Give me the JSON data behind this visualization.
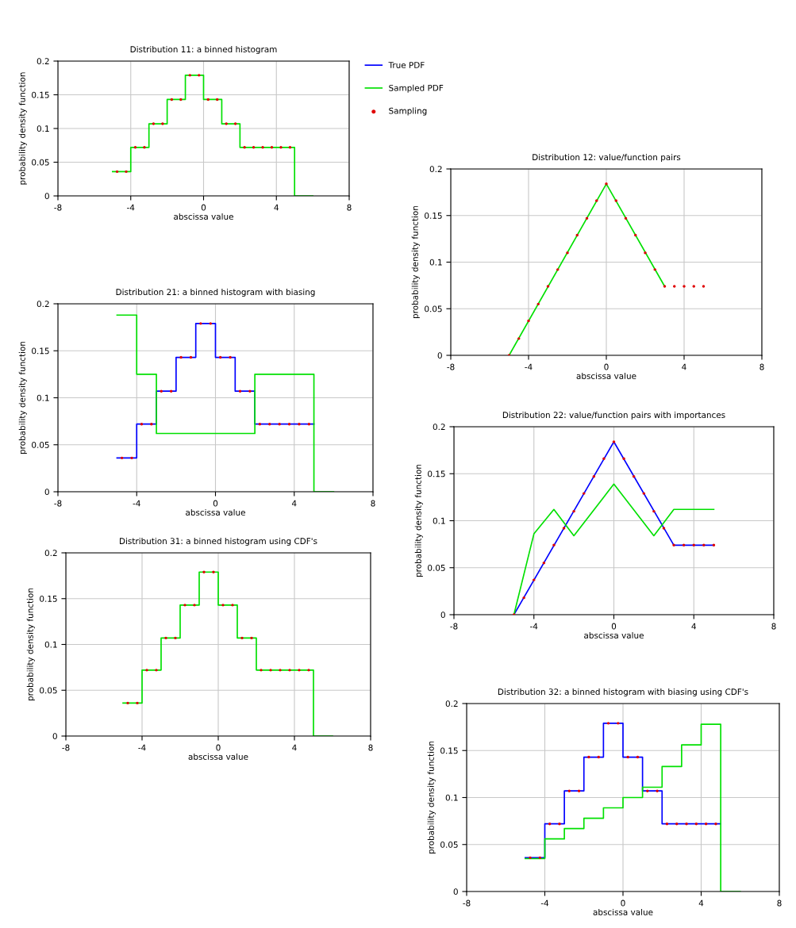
{
  "chart_data": [
    {
      "type": "step",
      "title": "Distribution 11: a binned histogram",
      "xlabel": "abscissa value",
      "ylabel": "probability density function",
      "xlim": [
        -8,
        8
      ],
      "ylim": [
        0,
        0.2
      ],
      "xticks": [
        -8,
        -4,
        0,
        4,
        8
      ],
      "yticks": [
        0,
        0.05,
        0.1,
        0.15,
        0.2
      ],
      "grid": true,
      "legend": "right",
      "series": [
        {
          "name": "True PDF",
          "color": "#0000ff"
        },
        {
          "name": "Sampled PDF",
          "color": "#00e000",
          "x": [
            -5,
            -4,
            -3,
            -2,
            -1,
            0,
            1,
            2,
            5,
            6
          ],
          "values": [
            0.036,
            0.072,
            0.107,
            0.143,
            0.179,
            0.143,
            0.107,
            0.072,
            0,
            0
          ]
        },
        {
          "name": "Sampling",
          "type": "scatter",
          "color": "#e00000",
          "x": [
            -4.75,
            -4.25,
            -3.75,
            -3.25,
            -2.75,
            -2.25,
            -1.75,
            -1.25,
            -0.75,
            -0.25,
            0.25,
            0.75,
            1.25,
            1.75,
            2.25,
            2.75,
            3.25,
            3.75,
            4.25,
            4.75
          ],
          "values": [
            0.036,
            0.036,
            0.072,
            0.072,
            0.107,
            0.107,
            0.143,
            0.143,
            0.179,
            0.179,
            0.143,
            0.143,
            0.107,
            0.107,
            0.072,
            0.072,
            0.072,
            0.072,
            0.072,
            0.072
          ]
        }
      ]
    },
    {
      "type": "line",
      "title": "Distribution 12: value/function pairs",
      "xlabel": "abscissa value",
      "ylabel": "probability density function",
      "xlim": [
        -8,
        8
      ],
      "ylim": [
        0,
        0.2
      ],
      "xticks": [
        -8,
        -4,
        0,
        4,
        8
      ],
      "yticks": [
        0,
        0.05,
        0.1,
        0.15,
        0.2
      ],
      "grid": true,
      "series": [
        {
          "color": "#00e000",
          "x": [
            -5,
            0,
            3
          ],
          "values": [
            0,
            0.184,
            0.074
          ]
        },
        {
          "type": "scatter",
          "color": "#e00000",
          "x": [
            -5,
            -4.5,
            -4,
            -3.5,
            -3,
            -2.5,
            -2,
            -1.5,
            -1,
            -0.5,
            0,
            0.5,
            1,
            1.5,
            2,
            2.5,
            3,
            3.5,
            4,
            4.5,
            5
          ],
          "values": [
            0,
            0.018,
            0.037,
            0.055,
            0.074,
            0.092,
            0.11,
            0.129,
            0.147,
            0.166,
            0.184,
            0.166,
            0.147,
            0.129,
            0.11,
            0.092,
            0.074,
            0.074,
            0.074,
            0.074,
            0.074
          ]
        }
      ]
    },
    {
      "type": "step",
      "title": "Distribution 21: a binned histogram with biasing",
      "xlabel": "abscissa value",
      "ylabel": "probability density function",
      "xlim": [
        -8,
        8
      ],
      "ylim": [
        0,
        0.2
      ],
      "xticks": [
        -8,
        -4,
        0,
        4,
        8
      ],
      "yticks": [
        0,
        0.05,
        0.1,
        0.15,
        0.2
      ],
      "grid": true,
      "series": [
        {
          "color": "#0000ff",
          "x": [
            -5,
            -4,
            -3,
            -2,
            -1,
            0,
            1,
            2,
            5
          ],
          "values": [
            0.036,
            0.072,
            0.107,
            0.143,
            0.179,
            0.143,
            0.107,
            0.072,
            0.072
          ]
        },
        {
          "color": "#00e000",
          "x": [
            -5,
            -4,
            -3,
            2,
            5,
            6
          ],
          "values": [
            0.188,
            0.125,
            0.062,
            0.125,
            0,
            0
          ]
        },
        {
          "type": "scatter",
          "color": "#e00000",
          "x": [
            -4.75,
            -4.25,
            -3.75,
            -3.25,
            -2.75,
            -2.25,
            -1.75,
            -1.25,
            -0.75,
            -0.25,
            0.25,
            0.75,
            1.25,
            1.75,
            2.25,
            2.75,
            3.25,
            3.75,
            4.25,
            4.75
          ],
          "values": [
            0.036,
            0.036,
            0.072,
            0.072,
            0.107,
            0.107,
            0.143,
            0.143,
            0.179,
            0.179,
            0.143,
            0.143,
            0.107,
            0.107,
            0.072,
            0.072,
            0.072,
            0.072,
            0.072,
            0.072
          ]
        }
      ]
    },
    {
      "type": "line",
      "title": "Distribution 22: value/function pairs with importances",
      "xlabel": "abscissa value",
      "ylabel": "probability density function",
      "xlim": [
        -8,
        8
      ],
      "ylim": [
        0,
        0.2
      ],
      "xticks": [
        -8,
        -4,
        0,
        4,
        8
      ],
      "yticks": [
        0,
        0.05,
        0.1,
        0.15,
        0.2
      ],
      "grid": true,
      "series": [
        {
          "color": "#0000ff",
          "x": [
            -5,
            0,
            3,
            5
          ],
          "values": [
            0,
            0.184,
            0.074,
            0.074
          ]
        },
        {
          "color": "#00e000",
          "x": [
            -5,
            -4,
            -3,
            -2,
            0,
            2,
            3,
            5
          ],
          "values": [
            0,
            0.086,
            0.112,
            0.084,
            0.139,
            0.084,
            0.112,
            0.112
          ]
        },
        {
          "type": "scatter",
          "color": "#e00000",
          "x": [
            -5,
            -4.5,
            -4,
            -3.5,
            -3,
            -2.5,
            -2,
            -1.5,
            -1,
            -0.5,
            0,
            0.5,
            1,
            1.5,
            2,
            2.5,
            3,
            3.5,
            4,
            4.5,
            5
          ],
          "values": [
            0,
            0.018,
            0.037,
            0.055,
            0.074,
            0.092,
            0.11,
            0.129,
            0.147,
            0.166,
            0.184,
            0.166,
            0.147,
            0.129,
            0.11,
            0.092,
            0.074,
            0.074,
            0.074,
            0.074,
            0.074
          ]
        }
      ]
    },
    {
      "type": "step",
      "title": "Distribution 31: a binned histogram using CDF's",
      "xlabel": "abscissa value",
      "ylabel": "probability density function",
      "xlim": [
        -8,
        8
      ],
      "ylim": [
        0,
        0.2
      ],
      "xticks": [
        -8,
        -4,
        0,
        4,
        8
      ],
      "yticks": [
        0,
        0.05,
        0.1,
        0.15,
        0.2
      ],
      "grid": true,
      "series": [
        {
          "color": "#00e000",
          "x": [
            -5,
            -4,
            -3,
            -2,
            -1,
            0,
            1,
            2,
            5,
            6
          ],
          "values": [
            0.036,
            0.072,
            0.107,
            0.143,
            0.179,
            0.143,
            0.107,
            0.072,
            0,
            0
          ]
        },
        {
          "type": "scatter",
          "color": "#e00000",
          "x": [
            -4.75,
            -4.25,
            -3.75,
            -3.25,
            -2.75,
            -2.25,
            -1.75,
            -1.25,
            -0.75,
            -0.25,
            0.25,
            0.75,
            1.25,
            1.75,
            2.25,
            2.75,
            3.25,
            3.75,
            4.25,
            4.75
          ],
          "values": [
            0.036,
            0.036,
            0.072,
            0.072,
            0.107,
            0.107,
            0.143,
            0.143,
            0.179,
            0.179,
            0.143,
            0.143,
            0.107,
            0.107,
            0.072,
            0.072,
            0.072,
            0.072,
            0.072,
            0.072
          ]
        }
      ]
    },
    {
      "type": "step",
      "title": "Distribution 32: a binned histogram with biasing using CDF's",
      "xlabel": "abscissa value",
      "ylabel": "probability density function",
      "xlim": [
        -8,
        8
      ],
      "ylim": [
        0,
        0.2
      ],
      "xticks": [
        -8,
        -4,
        0,
        4,
        8
      ],
      "yticks": [
        0,
        0.05,
        0.1,
        0.15,
        0.2
      ],
      "grid": true,
      "series": [
        {
          "color": "#0000ff",
          "x": [
            -5,
            -4,
            -3,
            -2,
            -1,
            0,
            1,
            2,
            5
          ],
          "values": [
            0.036,
            0.072,
            0.107,
            0.143,
            0.179,
            0.143,
            0.107,
            0.072,
            0.072
          ]
        },
        {
          "color": "#00e000",
          "x": [
            -5,
            -4,
            -3,
            -2,
            -1,
            0,
            1,
            2,
            3,
            4,
            5,
            6
          ],
          "values": [
            0.035,
            0.056,
            0.067,
            0.078,
            0.089,
            0.1,
            0.111,
            0.133,
            0.156,
            0.178,
            0,
            0
          ]
        },
        {
          "type": "scatter",
          "color": "#e00000",
          "x": [
            -4.75,
            -4.25,
            -3.75,
            -3.25,
            -2.75,
            -2.25,
            -1.75,
            -1.25,
            -0.75,
            -0.25,
            0.25,
            0.75,
            1.25,
            1.75,
            2.25,
            2.75,
            3.25,
            3.75,
            4.25,
            4.75
          ],
          "values": [
            0.036,
            0.036,
            0.072,
            0.072,
            0.107,
            0.107,
            0.143,
            0.143,
            0.179,
            0.179,
            0.143,
            0.143,
            0.107,
            0.107,
            0.072,
            0.072,
            0.072,
            0.072,
            0.072,
            0.072
          ]
        }
      ]
    }
  ]
}
